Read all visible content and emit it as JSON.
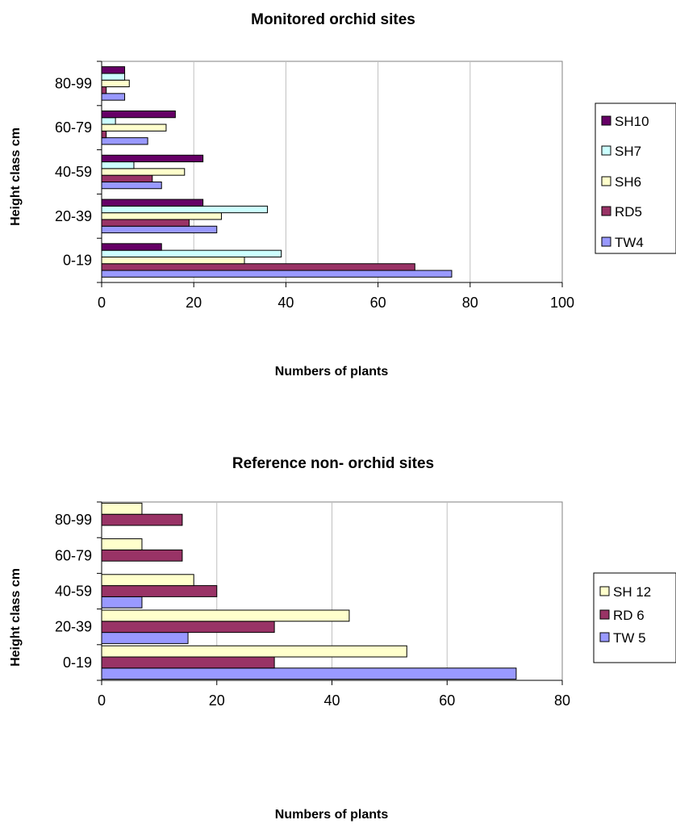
{
  "chart_data": [
    {
      "type": "bar",
      "orientation": "horizontal",
      "title": "Monitored orchid sites",
      "xlabel": "Numbers of plants",
      "ylabel": "Height class cm",
      "categories": [
        "0-19",
        "20-39",
        "40-59",
        "60-79",
        "80-99"
      ],
      "xlim": [
        0,
        100
      ],
      "xticks": [
        "0",
        "20",
        "40",
        "60",
        "80",
        "100"
      ],
      "grid": "vertical",
      "legend_position": "right",
      "series": [
        {
          "name": "TW4",
          "color": "#9999ff",
          "values": [
            76,
            25,
            13,
            10,
            5
          ]
        },
        {
          "name": "RD5",
          "color": "#993366",
          "values": [
            68,
            19,
            11,
            1,
            1
          ]
        },
        {
          "name": "SH6",
          "color": "#ffffcc",
          "values": [
            31,
            26,
            18,
            14,
            6
          ]
        },
        {
          "name": "SH7",
          "color": "#ccffff",
          "values": [
            39,
            36,
            7,
            3,
            5
          ]
        },
        {
          "name": "SH10",
          "color": "#660066",
          "values": [
            13,
            22,
            22,
            16,
            5
          ]
        }
      ]
    },
    {
      "type": "bar",
      "orientation": "horizontal",
      "title": "Reference non- orchid sites",
      "xlabel": "Numbers of plants",
      "ylabel": "Height class cm",
      "categories": [
        "0-19",
        "20-39",
        "40-59",
        "60-79",
        "80-99"
      ],
      "xlim": [
        0,
        80
      ],
      "xticks": [
        "0",
        "20",
        "40",
        "60",
        "80"
      ],
      "grid": "vertical",
      "legend_position": "right",
      "series": [
        {
          "name": "TW 5",
          "color": "#9999ff",
          "values": [
            72,
            15,
            7,
            0,
            0
          ]
        },
        {
          "name": "RD 6",
          "color": "#993366",
          "values": [
            30,
            30,
            20,
            14,
            14
          ]
        },
        {
          "name": "SH 12",
          "color": "#ffffcc",
          "values": [
            53,
            43,
            16,
            7,
            7
          ]
        }
      ]
    }
  ]
}
